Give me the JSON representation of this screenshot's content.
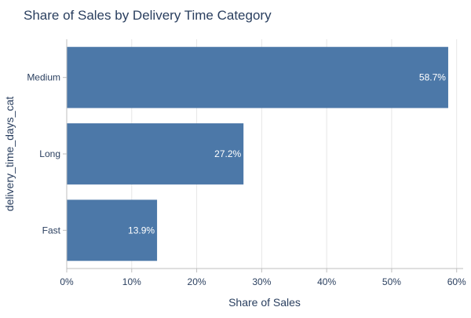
{
  "chart_data": {
    "type": "bar",
    "orientation": "horizontal",
    "title": "Share of Sales by Delivery Time Category",
    "xlabel": "Share of Sales",
    "ylabel": "delivery_time_days_cat",
    "categories": [
      "Medium",
      "Long",
      "Fast"
    ],
    "values": [
      58.7,
      27.2,
      13.9
    ],
    "data_labels": [
      "58.7%",
      "27.2%",
      "13.9%"
    ],
    "xlim": [
      0,
      61
    ],
    "xticks": [
      0,
      10,
      20,
      30,
      40,
      50,
      60
    ],
    "xtick_labels": [
      "0%",
      "10%",
      "20%",
      "30%",
      "40%",
      "50%",
      "60%"
    ],
    "grid": "vertical",
    "legend": "none",
    "colors": {
      "bar": "#4c78a8",
      "bar_label": "#ffffff",
      "text": "#2a3f5f",
      "grid": "#e6e6e6",
      "axis": "#bfbfbf"
    }
  }
}
